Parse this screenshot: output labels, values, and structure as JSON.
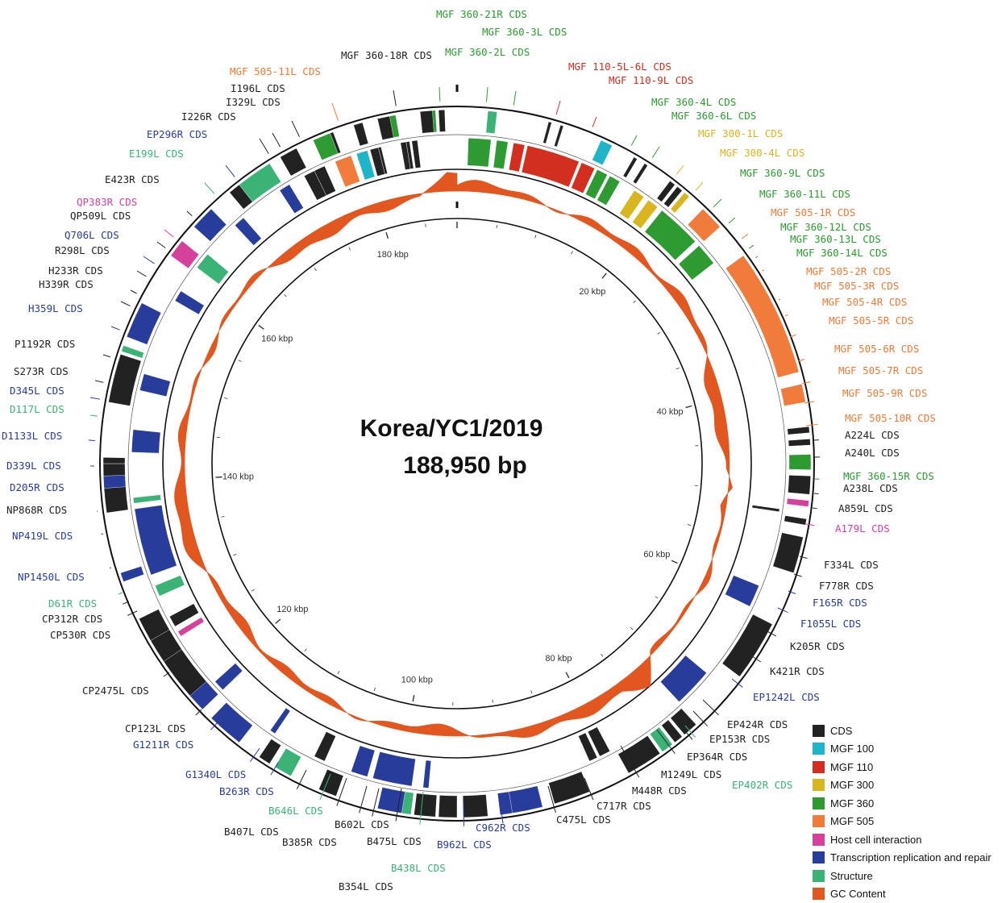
{
  "title": "Korea/YC1/2019",
  "length": "188,950 bp",
  "colors": {
    "CDS": "#222222",
    "MGF100": "#1fb5c9",
    "MGF110": "#d22f20",
    "MGF300": "#d9b51f",
    "MGF360": "#2e9a32",
    "MGF505": "#f07b3a",
    "host": "#d6429b",
    "trans": "#283c9c",
    "struct": "#3bb377",
    "gc": "#e2561f"
  },
  "legend": [
    {
      "label": "CDS",
      "color": "#222222"
    },
    {
      "label": "MGF 100",
      "color": "#1fb5c9"
    },
    {
      "label": "MGF 110",
      "color": "#d22f20"
    },
    {
      "label": "MGF 300",
      "color": "#d9b51f"
    },
    {
      "label": "MGF 360",
      "color": "#2e9a32"
    },
    {
      "label": "MGF 505",
      "color": "#f07b3a"
    },
    {
      "label": "Host cell interaction",
      "color": "#d6429b"
    },
    {
      "label": "Transcription replication and repair",
      "color": "#283c9c"
    },
    {
      "label": "Structure",
      "color": "#3bb377"
    },
    {
      "label": "GC Content",
      "color": "#e2561f"
    }
  ],
  "kbp_labels": [
    "20 kbp",
    "40 kbp",
    "60 kbp",
    "80 kbp",
    "100 kbp",
    "120 kbp",
    "140 kbp",
    "160 kbp",
    "180 kbp"
  ],
  "genes": [
    {
      "name": "MGF 360-21R CDS",
      "cat": "MGF360"
    },
    {
      "name": "MGF 360-3L CDS",
      "cat": "MGF360"
    },
    {
      "name": "MGF 360-2L CDS",
      "cat": "MGF360"
    },
    {
      "name": "MGF 360-18R CDS",
      "cat": "CDS"
    },
    {
      "name": "MGF 110-5L-6L CDS",
      "cat": "MGF110"
    },
    {
      "name": "MGF 110-9L CDS",
      "cat": "MGF110"
    },
    {
      "name": "MGF 505-11L CDS",
      "cat": "MGF505"
    },
    {
      "name": "I196L CDS",
      "cat": "CDS"
    },
    {
      "name": "MGF 360-4L CDS",
      "cat": "MGF360"
    },
    {
      "name": "I329L CDS",
      "cat": "CDS"
    },
    {
      "name": "MGF 360-6L CDS",
      "cat": "MGF360"
    },
    {
      "name": "I226R CDS",
      "cat": "CDS"
    },
    {
      "name": "MGF 300-1L CDS",
      "cat": "MGF300"
    },
    {
      "name": "EP296R CDS",
      "cat": "trans"
    },
    {
      "name": "MGF 300-4L CDS",
      "cat": "MGF300"
    },
    {
      "name": "E199L CDS",
      "cat": "struct"
    },
    {
      "name": "MGF 360-9L CDS",
      "cat": "MGF360"
    },
    {
      "name": "E423R CDS",
      "cat": "CDS"
    },
    {
      "name": "MGF 360-11L CDS",
      "cat": "MGF360"
    },
    {
      "name": "QP383R CDS",
      "cat": "host"
    },
    {
      "name": "MGF 505-1R CDS",
      "cat": "MGF505"
    },
    {
      "name": "QP509L CDS",
      "cat": "CDS"
    },
    {
      "name": "MGF 360-12L CDS",
      "cat": "MGF360"
    },
    {
      "name": "Q706L CDS",
      "cat": "trans"
    },
    {
      "name": "MGF 360-13L CDS",
      "cat": "MGF360"
    },
    {
      "name": "R298L CDS",
      "cat": "CDS"
    },
    {
      "name": "MGF 360-14L CDS",
      "cat": "MGF360"
    },
    {
      "name": "H233R CDS",
      "cat": "CDS"
    },
    {
      "name": "MGF 505-2R CDS",
      "cat": "MGF505"
    },
    {
      "name": "H339R CDS",
      "cat": "CDS"
    },
    {
      "name": "MGF 505-3R CDS",
      "cat": "MGF505"
    },
    {
      "name": "MGF 505-4R CDS",
      "cat": "MGF505"
    },
    {
      "name": "H359L CDS",
      "cat": "trans"
    },
    {
      "name": "MGF 505-5R CDS",
      "cat": "MGF505"
    },
    {
      "name": "P1192R CDS",
      "cat": "CDS"
    },
    {
      "name": "MGF 505-6R CDS",
      "cat": "MGF505"
    },
    {
      "name": "S273R CDS",
      "cat": "CDS"
    },
    {
      "name": "MGF 505-7R CDS",
      "cat": "MGF505"
    },
    {
      "name": "D345L CDS",
      "cat": "trans"
    },
    {
      "name": "MGF 505-9R CDS",
      "cat": "MGF505"
    },
    {
      "name": "D117L CDS",
      "cat": "struct"
    },
    {
      "name": "MGF 505-10R CDS",
      "cat": "MGF505"
    },
    {
      "name": "A224L CDS",
      "cat": "CDS"
    },
    {
      "name": "D1133L CDS",
      "cat": "trans"
    },
    {
      "name": "A240L CDS",
      "cat": "CDS"
    },
    {
      "name": "D339L CDS",
      "cat": "trans"
    },
    {
      "name": "MGF 360-15R CDS",
      "cat": "MGF360"
    },
    {
      "name": "D205R CDS",
      "cat": "trans"
    },
    {
      "name": "A238L CDS",
      "cat": "CDS"
    },
    {
      "name": "NP868R CDS",
      "cat": "CDS"
    },
    {
      "name": "A859L CDS",
      "cat": "CDS"
    },
    {
      "name": "A179L CDS",
      "cat": "host"
    },
    {
      "name": "NP419L CDS",
      "cat": "trans"
    },
    {
      "name": "F334L CDS",
      "cat": "CDS"
    },
    {
      "name": "NP1450L CDS",
      "cat": "trans"
    },
    {
      "name": "F778R CDS",
      "cat": "CDS"
    },
    {
      "name": "D61R CDS",
      "cat": "struct"
    },
    {
      "name": "F165R CDS",
      "cat": "trans"
    },
    {
      "name": "CP312R CDS",
      "cat": "CDS"
    },
    {
      "name": "F1055L CDS",
      "cat": "trans"
    },
    {
      "name": "CP530R CDS",
      "cat": "CDS"
    },
    {
      "name": "K205R CDS",
      "cat": "CDS"
    },
    {
      "name": "K421R CDS",
      "cat": "CDS"
    },
    {
      "name": "EP1242L CDS",
      "cat": "trans"
    },
    {
      "name": "CP2475L CDS",
      "cat": "CDS"
    },
    {
      "name": "EP424R CDS",
      "cat": "CDS"
    },
    {
      "name": "CP123L CDS",
      "cat": "CDS"
    },
    {
      "name": "EP153R CDS",
      "cat": "CDS"
    },
    {
      "name": "G1211R CDS",
      "cat": "trans"
    },
    {
      "name": "EP364R CDS",
      "cat": "CDS"
    },
    {
      "name": "M1249L CDS",
      "cat": "CDS"
    },
    {
      "name": "G1340L CDS",
      "cat": "trans"
    },
    {
      "name": "EP402R CDS",
      "cat": "struct"
    },
    {
      "name": "B263R CDS",
      "cat": "trans"
    },
    {
      "name": "M448R CDS",
      "cat": "CDS"
    },
    {
      "name": "B646L CDS",
      "cat": "struct"
    },
    {
      "name": "C717R CDS",
      "cat": "CDS"
    },
    {
      "name": "B407L CDS",
      "cat": "CDS"
    },
    {
      "name": "B602L CDS",
      "cat": "CDS"
    },
    {
      "name": "C475L CDS",
      "cat": "CDS"
    },
    {
      "name": "B385R CDS",
      "cat": "CDS"
    },
    {
      "name": "C962R CDS",
      "cat": "trans"
    },
    {
      "name": "B475L CDS",
      "cat": "CDS"
    },
    {
      "name": "B962L CDS",
      "cat": "trans"
    },
    {
      "name": "B438L CDS",
      "cat": "struct"
    },
    {
      "name": "B354L CDS",
      "cat": "CDS"
    }
  ]
}
